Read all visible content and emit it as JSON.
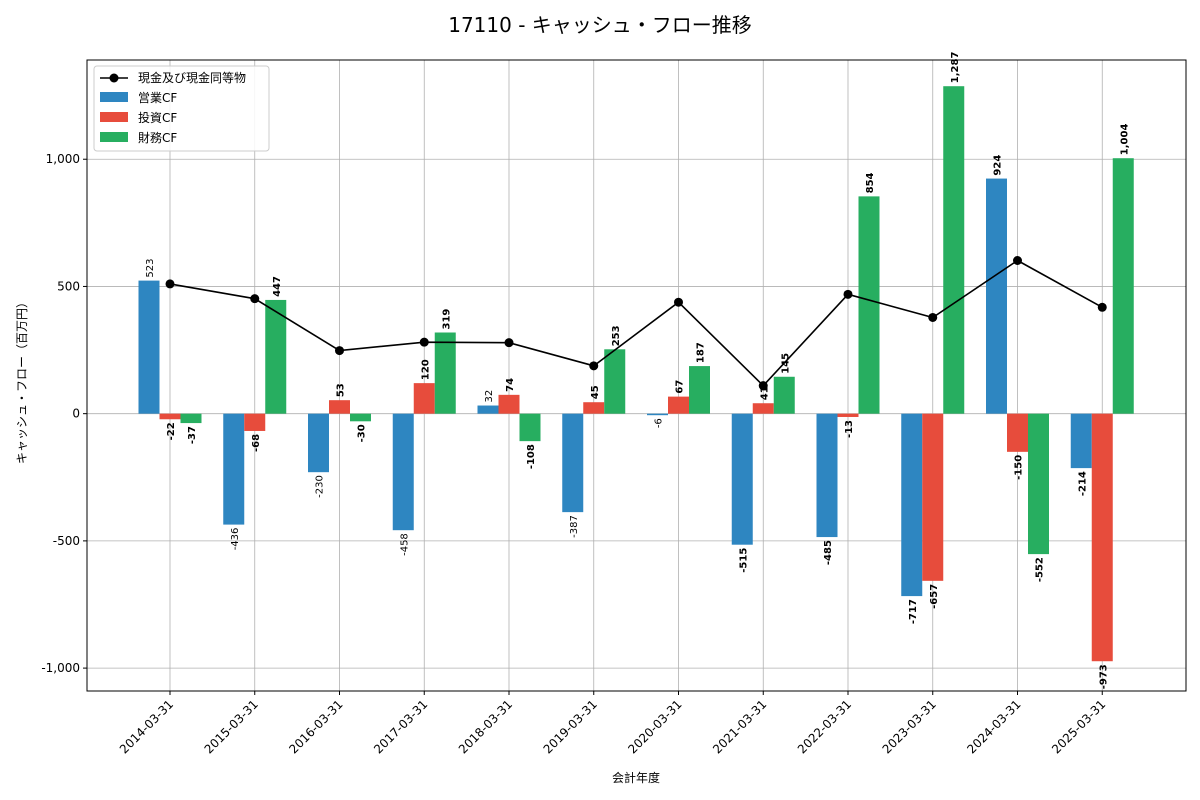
{
  "chart_data": {
    "type": "bar",
    "title": "17110 - キャッシュ・フロー推移",
    "xlabel": "会計年度",
    "ylabel": "キャッシュ・フロー（百万円）",
    "categories": [
      "2014-03-31",
      "2015-03-31",
      "2016-03-31",
      "2017-03-31",
      "2018-03-31",
      "2019-03-31",
      "2020-03-31",
      "2021-03-31",
      "2022-03-31",
      "2023-03-31",
      "2024-03-31",
      "2025-03-31"
    ],
    "series": [
      {
        "name": "営業CF",
        "kind": "bar",
        "color": "#2e86c1",
        "values": [
          523,
          -436,
          -230,
          -458,
          32,
          -387,
          -6,
          -515,
          -485,
          -717,
          924,
          -214
        ],
        "labels": [
          "523",
          "-436",
          "-230",
          "-458",
          "32",
          "-387",
          "-6",
          "-515",
          "-485",
          "-717",
          "924",
          "-214"
        ]
      },
      {
        "name": "投資CF",
        "kind": "bar",
        "color": "#e74c3c",
        "values": [
          -22,
          -68,
          53,
          120,
          74,
          45,
          67,
          41,
          -13,
          -657,
          -150,
          -973
        ],
        "labels": [
          "-22",
          "-68",
          "53",
          "120",
          "74",
          "45",
          "67",
          "41",
          "-13",
          "-657",
          "-150",
          "-973"
        ]
      },
      {
        "name": "財務CF",
        "kind": "bar",
        "color": "#27ae60",
        "values": [
          -37,
          447,
          -30,
          319,
          -108,
          253,
          187,
          145,
          854,
          1287,
          -552,
          1004
        ],
        "labels": [
          "-37",
          "447",
          "-30",
          "319",
          "-108",
          "253",
          "187",
          "145",
          "854",
          "1,287",
          "-552",
          "1,004"
        ]
      },
      {
        "name": "現金及び現金同等物",
        "kind": "line",
        "color": "#000000",
        "values": [
          510,
          452,
          248,
          281,
          279,
          188,
          438,
          110,
          469,
          378,
          602,
          418
        ]
      }
    ],
    "ylim": [
      -1090,
      1390
    ],
    "yticks": [
      -1000,
      -500,
      0,
      500,
      1000
    ],
    "ytick_labels": [
      "-1,000",
      "-500",
      "0",
      "500",
      "1,000"
    ],
    "grid": true,
    "legend_position": "top-left"
  }
}
